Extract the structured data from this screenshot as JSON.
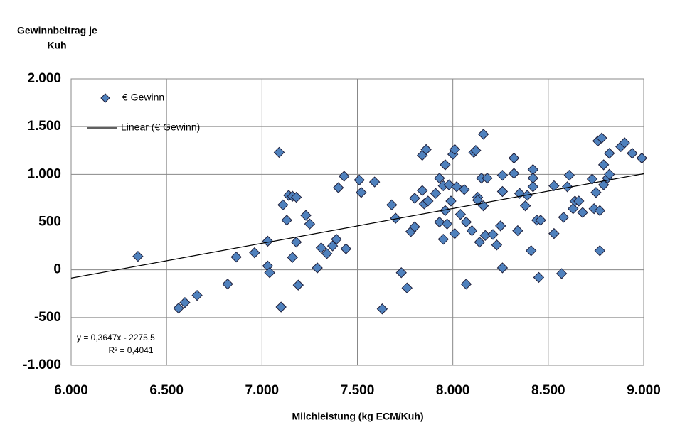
{
  "chart_data": {
    "type": "scatter",
    "y_label": [
      "Gewinnbeitrag je",
      "Kuh"
    ],
    "x_label": "Milchleistung  (kg ECM/Kuh)",
    "xlim": [
      6000,
      9000
    ],
    "xticks": [
      {
        "value": 6000,
        "label": "6.000"
      },
      {
        "value": 6500,
        "label": "6.500"
      },
      {
        "value": 7000,
        "label": "7.000"
      },
      {
        "value": 7500,
        "label": "7.500"
      },
      {
        "value": 8000,
        "label": "8.000"
      },
      {
        "value": 8500,
        "label": "8.500"
      },
      {
        "value": 9000,
        "label": "9.000"
      }
    ],
    "ylim": [
      -1000,
      2000
    ],
    "yticks": [
      {
        "value": -1000,
        "label": "-1.000"
      },
      {
        "value": -500,
        "label": "-500"
      },
      0,
      {
        "value": 500,
        "label": "500"
      },
      {
        "value": 1000,
        "label": "1.000"
      },
      {
        "value": 1500,
        "label": "1.500"
      },
      {
        "value": 2000,
        "label": "2.000"
      }
    ],
    "grid": true,
    "legend": "upper left",
    "series": [
      {
        "name": "€ Gewinn",
        "color": "#4f81bd",
        "x": [
          6350,
          6563,
          6596,
          6660,
          6820,
          6865,
          6961,
          7030,
          7030,
          7040,
          7090,
          7100,
          7110,
          7130,
          7140,
          7160,
          7160,
          7180,
          7180,
          7190,
          7230,
          7250,
          7290,
          7310,
          7340,
          7370,
          7390,
          7400,
          7430,
          7440,
          7510,
          7520,
          7590,
          7630,
          7680,
          7700,
          7730,
          7760,
          7780,
          7800,
          7800,
          7840,
          7840,
          7850,
          7860,
          7870,
          7910,
          7930,
          7930,
          7950,
          7950,
          7960,
          7960,
          7970,
          7980,
          7990,
          8000,
          8010,
          8010,
          8020,
          8040,
          8060,
          8070,
          8070,
          8100,
          8110,
          8120,
          8130,
          8130,
          8140,
          8150,
          8160,
          8160,
          8170,
          8180,
          8210,
          8230,
          8250,
          8260,
          8260,
          8260,
          8320,
          8320,
          8340,
          8350,
          8380,
          8390,
          8410,
          8420,
          8420,
          8420,
          8440,
          8450,
          8460,
          8530,
          8530,
          8570,
          8580,
          8600,
          8610,
          8630,
          8640,
          8660,
          8680,
          8730,
          8740,
          8750,
          8760,
          8770,
          8770,
          8780,
          8790,
          8790,
          8810,
          8820,
          8820,
          8880,
          8900,
          8940,
          8990
        ],
        "values": [
          141,
          -402,
          -343,
          -268,
          -149,
          134,
          179,
          300,
          40,
          -30,
          1230,
          -390,
          680,
          520,
          780,
          770,
          130,
          760,
          290,
          -160,
          570,
          480,
          20,
          230,
          170,
          250,
          320,
          860,
          980,
          220,
          940,
          810,
          920,
          -410,
          680,
          540,
          -30,
          -190,
          400,
          750,
          450,
          1200,
          830,
          690,
          1260,
          720,
          800,
          960,
          500,
          320,
          880,
          1100,
          620,
          480,
          890,
          720,
          1210,
          1260,
          380,
          870,
          580,
          840,
          -150,
          500,
          410,
          1230,
          1250,
          760,
          730,
          290,
          960,
          1420,
          670,
          360,
          960,
          370,
          260,
          460,
          990,
          820,
          20,
          1170,
          1010,
          410,
          800,
          670,
          780,
          200,
          1050,
          960,
          870,
          520,
          -80,
          520,
          880,
          380,
          -40,
          550,
          870,
          990,
          640,
          720,
          720,
          600,
          950,
          640,
          810,
          1350,
          620,
          200,
          1380,
          1100,
          890,
          960,
          1220,
          1000,
          1290,
          1330,
          1220,
          1170
        ]
      },
      {
        "name": "Linear (€ Gewinn)",
        "color": "#000000",
        "kind": "line",
        "x": [
          6000,
          9000
        ],
        "values": [
          -87.3,
          1006.8
        ]
      }
    ],
    "annotations": [
      "y = 0,3647x - 2275,5",
      "R² = 0,4041"
    ]
  }
}
